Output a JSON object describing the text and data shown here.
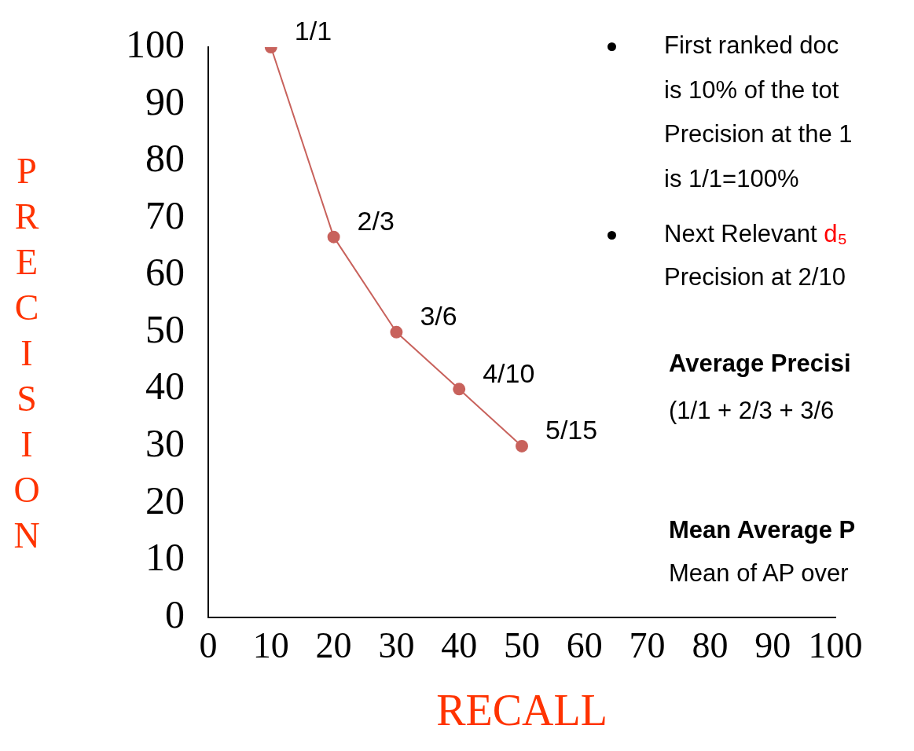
{
  "chart_data": {
    "type": "line",
    "xlabel": "RECALL",
    "ylabel": "PRECISION",
    "x": [
      10,
      20,
      30,
      40,
      50
    ],
    "series": [
      {
        "color": "#c8625c",
        "values": [
          100,
          66.7,
          50,
          40,
          30
        ]
      }
    ],
    "xlim": [
      0,
      100
    ],
    "xticks": [
      0,
      10,
      20,
      30,
      40,
      50,
      60,
      70,
      80,
      90,
      100
    ],
    "ylim": [
      0,
      100
    ],
    "yticks": [
      0,
      10,
      20,
      30,
      40,
      50,
      60,
      70,
      80,
      90,
      100
    ],
    "grid": false,
    "legend": false,
    "marker": "circle",
    "line_style": "solid",
    "annotations": [
      {
        "text": "1/1",
        "x": 10,
        "y": 100
      },
      {
        "text": "2/3",
        "x": 20,
        "y": 66.7
      },
      {
        "text": "3/6",
        "x": 30,
        "y": 50
      },
      {
        "text": "4/10",
        "x": 40,
        "y": 40
      },
      {
        "text": "5/15",
        "x": 50,
        "y": 30
      },
      "First ranked doc",
      "is 10% of the tot",
      "Precision at the 1",
      "is 1/1=100%",
      "Next Relevant d₅",
      "Precision at 2/10",
      "Average Precisi",
      "(1/1 + 2/3 + 3/6",
      "Mean Average P",
      "Mean of AP over"
    ]
  }
}
